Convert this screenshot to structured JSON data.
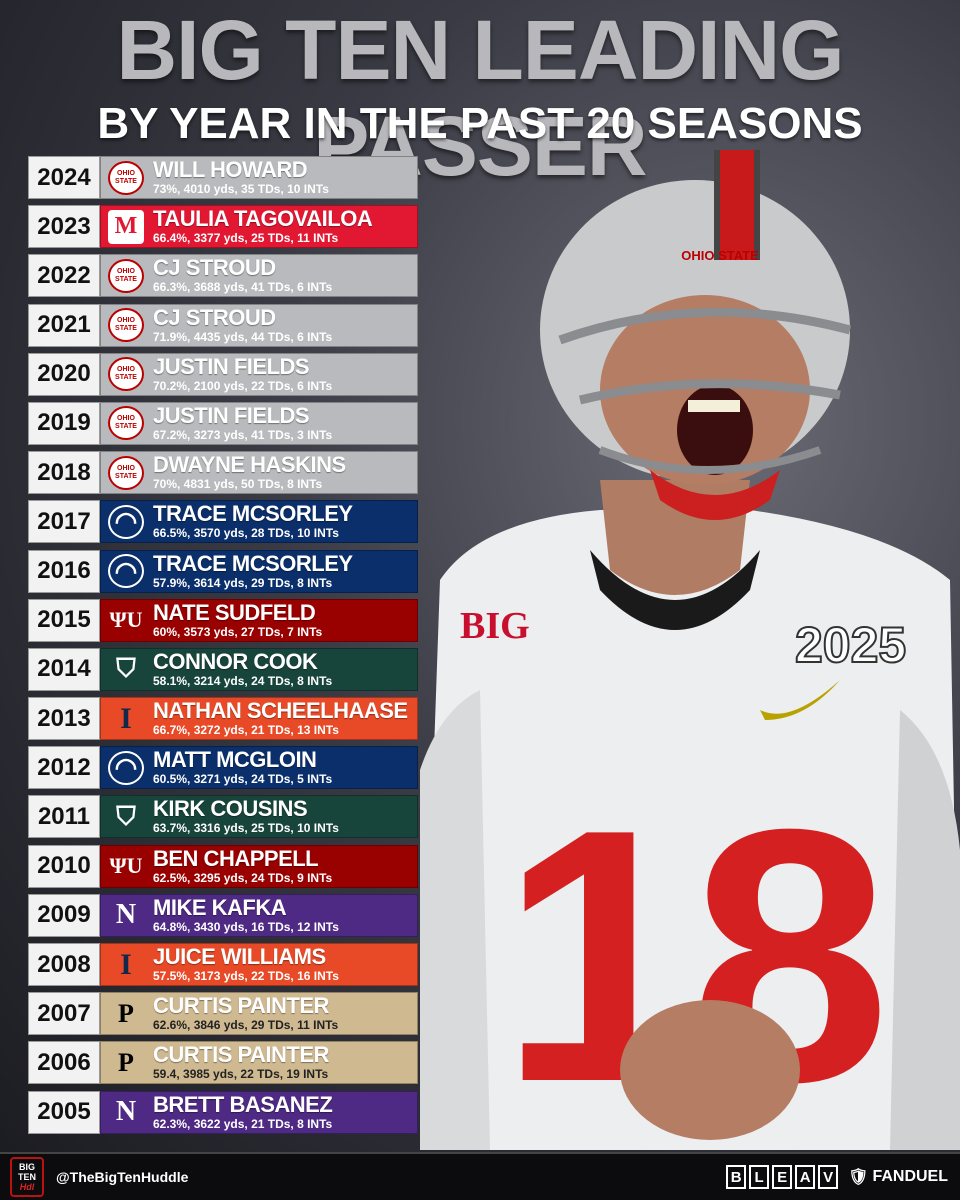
{
  "header": {
    "title": "BIG TEN LEADING PASSER",
    "subtitle": "BY YEAR IN THE PAST 20 SEASONS"
  },
  "rows": [
    {
      "year": "2024",
      "name": "WILL HOWARD",
      "stats": "73%, 4010 yds, 35 TDs, 10 INTs",
      "team": "osu"
    },
    {
      "year": "2023",
      "name": "TAULIA TAGOVAILOA",
      "stats": "66.4%, 3377 yds, 25 TDs, 11 INTs",
      "team": "md"
    },
    {
      "year": "2022",
      "name": "CJ STROUD",
      "stats": "66.3%, 3688 yds, 41 TDs, 6 INTs",
      "team": "osu"
    },
    {
      "year": "2021",
      "name": "CJ STROUD",
      "stats": "71.9%, 4435 yds, 44 TDs, 6 INTs",
      "team": "osu"
    },
    {
      "year": "2020",
      "name": "JUSTIN FIELDS",
      "stats": "70.2%, 2100 yds, 22 TDs, 6 INTs",
      "team": "osu"
    },
    {
      "year": "2019",
      "name": "JUSTIN FIELDS",
      "stats": "67.2%, 3273 yds, 41 TDs, 3 INTs",
      "team": "osu"
    },
    {
      "year": "2018",
      "name": "DWAYNE HASKINS",
      "stats": "70%, 4831 yds, 50 TDs, 8 INTs",
      "team": "osu"
    },
    {
      "year": "2017",
      "name": "TRACE MCSORLEY",
      "stats": "66.5%, 3570 yds, 28 TDs, 10 INTs",
      "team": "psu"
    },
    {
      "year": "2016",
      "name": "TRACE MCSORLEY",
      "stats": "57.9%, 3614 yds, 29 TDs, 8 INTs",
      "team": "psu"
    },
    {
      "year": "2015",
      "name": "NATE SUDFELD",
      "stats": "60%, 3573 yds, 27 TDs, 7 INTs",
      "team": "iu"
    },
    {
      "year": "2014",
      "name": "CONNOR COOK",
      "stats": "58.1%, 3214 yds, 24 TDs, 8 INTs",
      "team": "msu"
    },
    {
      "year": "2013",
      "name": "NATHAN SCHEELHAASE",
      "stats": "66.7%, 3272 yds, 21 TDs, 13 INTs",
      "team": "ill"
    },
    {
      "year": "2012",
      "name": "MATT MCGLOIN",
      "stats": "60.5%, 3271 yds, 24 TDs, 5 INTs",
      "team": "psu"
    },
    {
      "year": "2011",
      "name": "KIRK COUSINS",
      "stats": "63.7%, 3316 yds, 25 TDs, 10 INTs",
      "team": "msu"
    },
    {
      "year": "2010",
      "name": "BEN CHAPPELL",
      "stats": "62.5%, 3295 yds, 24 TDs, 9 INTs",
      "team": "iu"
    },
    {
      "year": "2009",
      "name": "MIKE KAFKA",
      "stats": "64.8%, 3430 yds, 16 TDs, 12 INTs",
      "team": "nw"
    },
    {
      "year": "2008",
      "name": "JUICE WILLIAMS",
      "stats": "57.5%, 3173 yds, 22 TDs, 16 INTs",
      "team": "ill"
    },
    {
      "year": "2007",
      "name": "CURTIS PAINTER",
      "stats": "62.6%, 3846 yds, 29 TDs, 11 INTs",
      "team": "pur"
    },
    {
      "year": "2006",
      "name": "CURTIS PAINTER",
      "stats": "59.4, 3985 yds, 22 TDs, 19 INTs",
      "team": "pur"
    },
    {
      "year": "2005",
      "name": "BRETT BASANEZ",
      "stats": "62.3%, 3622 yds, 21 TDs, 8 INTs",
      "team": "nw"
    }
  ],
  "teams": {
    "osu": {
      "bg": "#b9babd",
      "logo_text": "OHIO STATE",
      "logo_color": "#bb0000",
      "icon": "ohio-state-logo"
    },
    "md": {
      "bg": "#e21833",
      "logo_text": "M",
      "logo_color": "#e21833",
      "icon": "maryland-logo"
    },
    "psu": {
      "bg": "#0b2f6b",
      "logo_text": "◠",
      "logo_color": "#ffffff",
      "icon": "penn-state-logo"
    },
    "iu": {
      "bg": "#990000",
      "logo_text": "ΨU",
      "logo_color": "#ffffff",
      "icon": "indiana-logo"
    },
    "msu": {
      "bg": "#18453b",
      "logo_text": "⛉",
      "logo_color": "#ffffff",
      "icon": "michigan-state-logo"
    },
    "ill": {
      "bg": "#e84a27",
      "logo_text": "I",
      "logo_color": "#13294b",
      "icon": "illinois-logo"
    },
    "nw": {
      "bg": "#4e2a84",
      "logo_text": "N",
      "logo_color": "#ffffff",
      "icon": "northwestern-logo"
    },
    "pur": {
      "bg": "#cfb991",
      "logo_text": "P",
      "logo_color": "#000000",
      "icon": "purdue-logo"
    }
  },
  "player": {
    "helmet_text": "OHIO STATE",
    "jersey_number": "18",
    "patch": "2025",
    "chest_logo": "BIG"
  },
  "footer": {
    "handle": "@TheBigTenHuddle",
    "logo_text": "BIG TEN Huddle",
    "bleav": [
      "B",
      "L",
      "E",
      "A",
      "V"
    ],
    "fanduel": "FANDUEL"
  }
}
